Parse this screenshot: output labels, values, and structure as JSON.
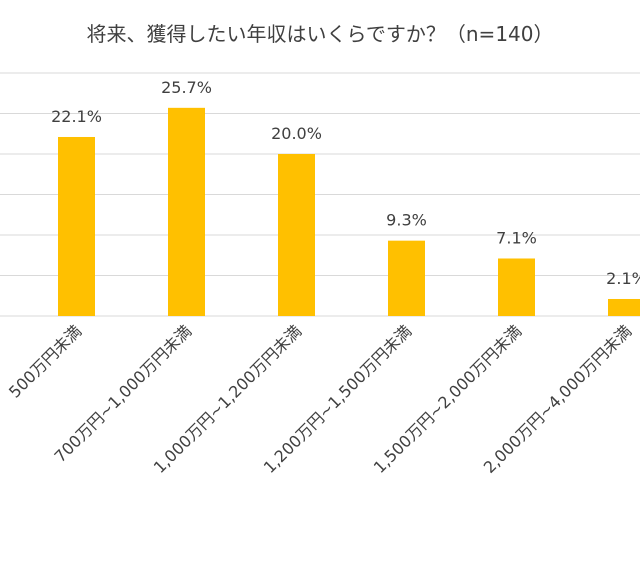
{
  "chart_data": {
    "type": "bar",
    "title": "将来、獲得したい年収はいくらですか？（n=140）",
    "categories": [
      "500万円未満",
      "700万円~1,000万円未満",
      "1,000万円~1,200万円未満",
      "1,200万円~1,500万円未満",
      "1,500万円~2,000万円未満",
      "2,000万円~4,000万円未満"
    ],
    "values": [
      22.1,
      25.7,
      20.0,
      9.3,
      7.1,
      2.1
    ],
    "data_labels": [
      "22.1%",
      "25.7%",
      "20.0%",
      "9.3%",
      "7.1%",
      "2.1%"
    ],
    "ylim": [
      0,
      30
    ],
    "grid": true,
    "legend": "none",
    "bar_color": "#ffc000"
  }
}
